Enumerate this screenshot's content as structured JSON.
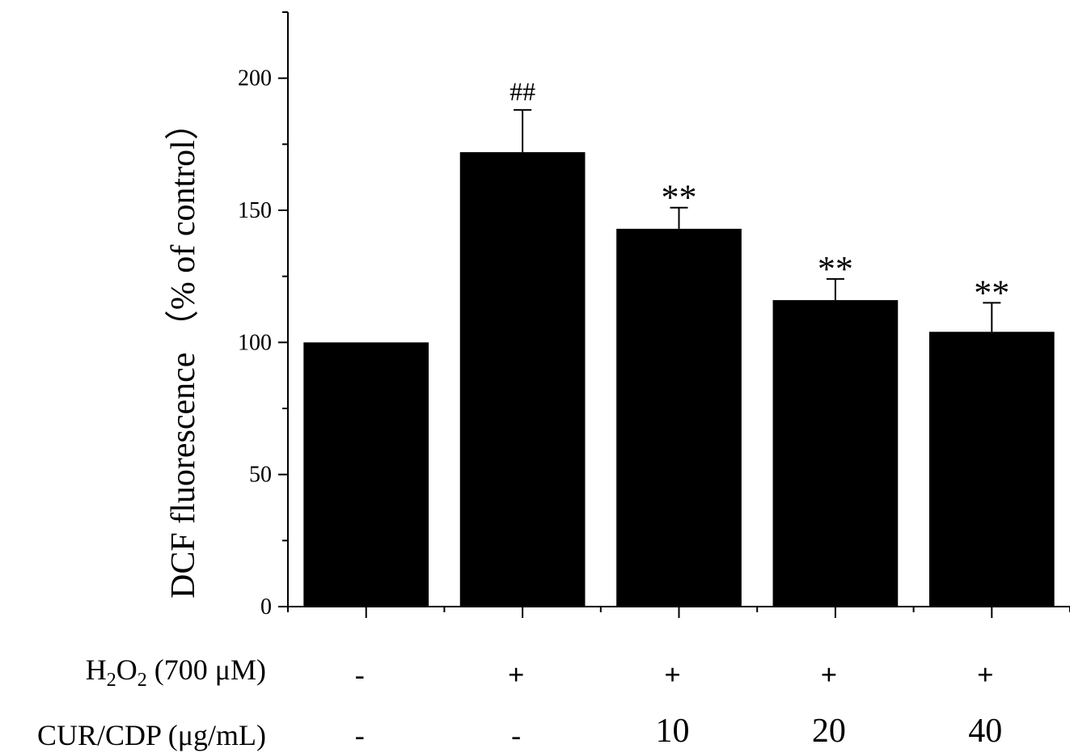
{
  "chart_data": {
    "type": "bar",
    "ylabel": "DCF fluorescence （% of control）",
    "ylim": [
      0,
      225
    ],
    "yticks": [
      0,
      50,
      100,
      150,
      200
    ],
    "values": [
      100,
      172,
      143,
      116,
      104
    ],
    "errors": [
      0,
      16,
      8,
      8,
      11
    ],
    "significance": [
      "",
      "##",
      "**",
      "**",
      "**"
    ],
    "bar_color": "#000000",
    "treatment_rows": [
      {
        "label_main": "H",
        "sub1": "2",
        "mid": "O",
        "sub2": "2",
        "suffix": " (700 μM)",
        "values": [
          "-",
          "+",
          "+",
          "+",
          "+"
        ]
      },
      {
        "label": "CUR/CDP (μg/mL)",
        "values": [
          "-",
          "-",
          "10",
          "20",
          "40"
        ]
      }
    ]
  }
}
